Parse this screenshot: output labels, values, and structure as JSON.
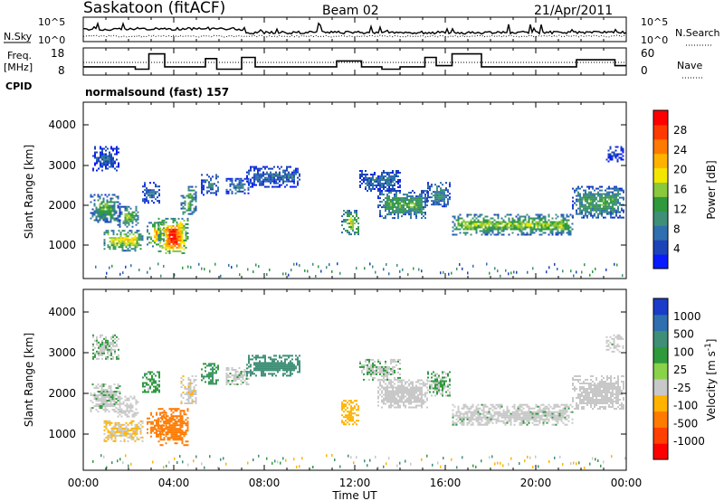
{
  "header": {
    "station": "Saskatoon (fitACF)",
    "beam": "Beam 02",
    "date": "21/Apr/2011"
  },
  "left_labels": {
    "nsky": "N.Sky",
    "freq_line1": "Freq.",
    "freq_line2": "[MHz]",
    "cpid": "CPID"
  },
  "right_labels": {
    "nsearch": "N.Search",
    "nave": "Nave"
  },
  "cpid_text": "normalsound (fast) 157",
  "noise_panel": {
    "left_ticks": [
      "10^5",
      "10^0"
    ],
    "right_ticks": [
      "10^5",
      "10^0"
    ]
  },
  "freq_panel": {
    "left_ticks": [
      "18",
      "8"
    ],
    "right_ticks": [
      "60",
      "0"
    ]
  },
  "x_axis": {
    "title": "Time UT",
    "ticks": [
      "00:00",
      "04:00",
      "08:00",
      "12:00",
      "16:00",
      "20:00",
      "00:00"
    ]
  },
  "power_panel": {
    "ylabel": "Slant Range [km]",
    "yticks": [
      "4000",
      "3000",
      "2000",
      "1000"
    ],
    "colorbar_label": "Power [dB]",
    "colorbar_ticks": [
      "28",
      "24",
      "20",
      "16",
      "12",
      "8",
      "4"
    ],
    "colors": [
      "#0a1aff",
      "#1c44b8",
      "#2f6fb0",
      "#3e8f76",
      "#2f9a3c",
      "#8ac83c",
      "#f3e600",
      "#ffb300",
      "#ff7a00",
      "#ff3a00",
      "#ff0000"
    ]
  },
  "velocity_panel": {
    "ylabel": "Slant Range [km]",
    "yticks": [
      "4000",
      "3000",
      "2000",
      "1000"
    ],
    "colorbar_label": "Velocity [m s",
    "colorbar_label_sup": "-1",
    "colorbar_label_end": "]",
    "colorbar_ticks": [
      "1000",
      "500",
      "100",
      "25",
      "-25",
      "-100",
      "-500",
      "-1000"
    ],
    "colors": [
      "#1a3cc8",
      "#2f6fb0",
      "#3e8f76",
      "#2f9a3c",
      "#8ad24a",
      "#c8c8c8",
      "#ffb300",
      "#ff7a00",
      "#ff4000",
      "#ff0000"
    ]
  },
  "chart_data": {
    "type": "heatmap",
    "title": "Saskatoon (fitACF)",
    "xlabel": "Time UT",
    "ylabel": "Slant Range [km]",
    "xlim_hours": [
      0,
      24
    ],
    "ylim_km": [
      180,
      4600
    ],
    "echo_regions": [
      {
        "t0": 0.3,
        "t1": 1.6,
        "r0": 1600,
        "r1": 2300,
        "power": 15,
        "vel": 10
      },
      {
        "t0": 0.9,
        "t1": 2.6,
        "r0": 900,
        "r1": 1400,
        "power": 24,
        "vel": -60
      },
      {
        "t0": 1.5,
        "t1": 2.4,
        "r0": 1500,
        "r1": 2000,
        "power": 20,
        "vel": -30
      },
      {
        "t0": 0.4,
        "t1": 1.6,
        "r0": 2900,
        "r1": 3500,
        "power": 8,
        "vel": 20
      },
      {
        "t0": 2.6,
        "t1": 3.4,
        "r0": 2100,
        "r1": 2600,
        "power": 12,
        "vel": 50
      },
      {
        "t0": 2.8,
        "t1": 3.6,
        "r0": 1000,
        "r1": 1600,
        "power": 26,
        "vel": -300
      },
      {
        "t0": 3.3,
        "t1": 4.6,
        "r0": 800,
        "r1": 1700,
        "power": 29,
        "vel": -400
      },
      {
        "t0": 4.3,
        "t1": 5.0,
        "r0": 1800,
        "r1": 2500,
        "power": 18,
        "vel": -40
      },
      {
        "t0": 5.2,
        "t1": 6.0,
        "r0": 2300,
        "r1": 2800,
        "power": 12,
        "vel": 60
      },
      {
        "t0": 6.3,
        "t1": 7.3,
        "r0": 2300,
        "r1": 2700,
        "power": 12,
        "vel": 0
      },
      {
        "t0": 7.2,
        "t1": 9.6,
        "r0": 2500,
        "r1": 3000,
        "power": 9,
        "vel": 150
      },
      {
        "t0": 11.4,
        "t1": 12.2,
        "r0": 1300,
        "r1": 1900,
        "power": 22,
        "vel": -200
      },
      {
        "t0": 12.2,
        "t1": 14.0,
        "r0": 2400,
        "r1": 2900,
        "power": 10,
        "vel": 10
      },
      {
        "t0": 13.0,
        "t1": 15.2,
        "r0": 1700,
        "r1": 2400,
        "power": 14,
        "vel": -20
      },
      {
        "t0": 15.2,
        "t1": 16.2,
        "r0": 2000,
        "r1": 2600,
        "power": 13,
        "vel": 30
      },
      {
        "t0": 16.3,
        "t1": 21.6,
        "r0": 1300,
        "r1": 1800,
        "power": 20,
        "vel": 0
      },
      {
        "t0": 21.6,
        "t1": 23.9,
        "r0": 1700,
        "r1": 2500,
        "power": 13,
        "vel": -10
      },
      {
        "t0": 23.1,
        "t1": 23.9,
        "r0": 3100,
        "r1": 3500,
        "power": 6,
        "vel": 0
      }
    ],
    "frequency_mhz_steps": [
      {
        "t0": 0.0,
        "t1": 2.3,
        "f": 11.5
      },
      {
        "t0": 2.3,
        "t1": 2.9,
        "f": 10.5
      },
      {
        "t0": 2.9,
        "t1": 3.6,
        "f": 17.0
      },
      {
        "t0": 3.6,
        "t1": 5.4,
        "f": 11.5
      },
      {
        "t0": 5.4,
        "t1": 5.9,
        "f": 15.0
      },
      {
        "t0": 5.9,
        "t1": 7.0,
        "f": 10.5
      },
      {
        "t0": 7.0,
        "t1": 7.6,
        "f": 15.5
      },
      {
        "t0": 7.6,
        "t1": 11.2,
        "f": 11.5
      },
      {
        "t0": 11.2,
        "t1": 12.3,
        "f": 14.0
      },
      {
        "t0": 12.3,
        "t1": 13.2,
        "f": 11.5
      },
      {
        "t0": 13.2,
        "t1": 14.0,
        "f": 10.5
      },
      {
        "t0": 14.0,
        "t1": 15.1,
        "f": 11.5
      },
      {
        "t0": 15.1,
        "t1": 15.6,
        "f": 15.5
      },
      {
        "t0": 15.6,
        "t1": 16.3,
        "f": 12.0
      },
      {
        "t0": 16.3,
        "t1": 17.6,
        "f": 17.0
      },
      {
        "t0": 17.6,
        "t1": 21.8,
        "f": 11.5
      },
      {
        "t0": 21.8,
        "t1": 23.5,
        "f": 14.5
      },
      {
        "t0": 23.5,
        "t1": 24.0,
        "f": 12.0
      }
    ]
  }
}
